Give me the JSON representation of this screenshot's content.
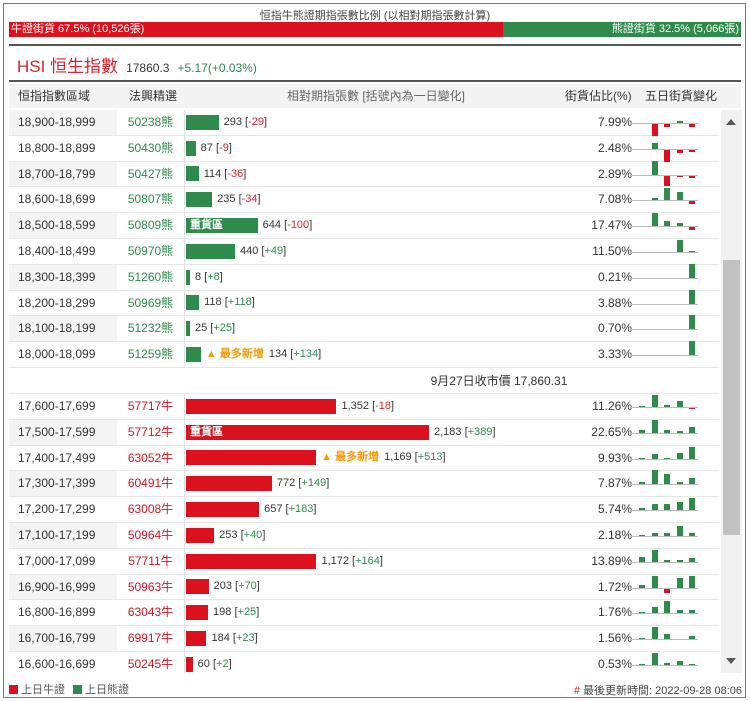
{
  "title": "恒指牛熊證期指張數比例 (以相對期指張數計算)",
  "ratio": {
    "bull_label": "牛證街貨 67.5% (10,526張)",
    "bull_pct": 67.5,
    "bear_label": "熊證街貨 32.5% (5,066張)",
    "bear_pct": 32.5
  },
  "index": {
    "name": "HSI 恒生指數",
    "price": "17860.3",
    "change": "+5.17(+0.03%)"
  },
  "headers": {
    "range": "恒指指數區域",
    "pick": "法興精選",
    "contracts": "相對期指張數 [括號內為一日變化]",
    "pct": "街貨佔比(%)",
    "five_day": "五日街貨變化"
  },
  "close_label": "9月27日收市價 17,860.31",
  "tags": {
    "heavy": "重貨區",
    "most_new": "▲ 最多新增"
  },
  "colors": {
    "bull": "#dc111e",
    "bear": "#2e8b4c",
    "hot": "#f39c12"
  },
  "bear_rows": [
    {
      "range": "18,900-18,999",
      "code": "50238熊",
      "count": 293,
      "count_label": "293",
      "change": "-29",
      "pct": "7.99%",
      "spark": [
        0,
        -12,
        -3,
        2,
        -3
      ]
    },
    {
      "range": "18,800-18,899",
      "code": "50430熊",
      "count": 87,
      "count_label": "87",
      "change": "-9",
      "pct": "2.48%",
      "spark": [
        0,
        6,
        -12,
        -3,
        -2
      ]
    },
    {
      "range": "18,700-18,799",
      "code": "50427熊",
      "count": 114,
      "count_label": "114",
      "change": "-36",
      "pct": "2.89%",
      "spark": [
        0,
        14,
        -10,
        -1,
        -2
      ]
    },
    {
      "range": "18,600-18,699",
      "code": "50807熊",
      "count": 235,
      "count_label": "235",
      "change": "-34",
      "pct": "7.08%",
      "spark": [
        0,
        2,
        12,
        8,
        -3
      ]
    },
    {
      "range": "18,500-18,599",
      "code": "50809熊",
      "count": 644,
      "count_label": "644",
      "change": "-100",
      "pct": "17.47%",
      "spark": [
        0,
        13,
        5,
        3,
        -3
      ],
      "heavy": true
    },
    {
      "range": "18,400-18,499",
      "code": "50970熊",
      "count": 440,
      "count_label": "440",
      "change": "+49",
      "pct": "11.50%",
      "spark": [
        0,
        0,
        0,
        12,
        1
      ]
    },
    {
      "range": "18,300-18,399",
      "code": "51260熊",
      "count": 8,
      "count_label": "8",
      "change": "+8",
      "pct": "0.21%",
      "spark": [
        0,
        0,
        0,
        0,
        14
      ]
    },
    {
      "range": "18,200-18,299",
      "code": "50969熊",
      "count": 118,
      "count_label": "118",
      "change": "+118",
      "pct": "3.88%",
      "spark": [
        0,
        0,
        0,
        0,
        14
      ]
    },
    {
      "range": "18,100-18,199",
      "code": "51232熊",
      "count": 25,
      "count_label": "25",
      "change": "+25",
      "pct": "0.70%",
      "spark": [
        0,
        0,
        0,
        0,
        14
      ]
    },
    {
      "range": "18,000-18,099",
      "code": "51259熊",
      "count": 134,
      "count_label": "134",
      "change": "+134",
      "pct": "3.33%",
      "spark": [
        0,
        0,
        0,
        0,
        14
      ],
      "most_new": true
    }
  ],
  "bull_rows": [
    {
      "range": "17,600-17,699",
      "code": "57717牛",
      "count": 1352,
      "count_label": "1,352",
      "change": "-18",
      "pct": "11.26%",
      "spark": [
        1,
        12,
        2,
        6,
        -1
      ]
    },
    {
      "range": "17,500-17,599",
      "code": "57712牛",
      "count": 2183,
      "count_label": "2,183",
      "change": "+389",
      "pct": "22.65%",
      "spark": [
        3,
        13,
        3,
        2,
        6
      ],
      "heavy": true
    },
    {
      "range": "17,400-17,499",
      "code": "63052牛",
      "count": 1169,
      "count_label": "1,169",
      "change": "+513",
      "pct": "9.93%",
      "spark": [
        1,
        5,
        1,
        6,
        12
      ],
      "most_new": true
    },
    {
      "range": "17,300-17,399",
      "code": "60491牛",
      "count": 772,
      "count_label": "772",
      "change": "+149",
      "pct": "7.87%",
      "spark": [
        2,
        14,
        10,
        2,
        6
      ]
    },
    {
      "range": "17,200-17,299",
      "code": "63008牛",
      "count": 657,
      "count_label": "657",
      "change": "+183",
      "pct": "5.74%",
      "spark": [
        2,
        6,
        6,
        8,
        12
      ]
    },
    {
      "range": "17,100-17,199",
      "code": "50964牛",
      "count": 253,
      "count_label": "253",
      "change": "+40",
      "pct": "2.18%",
      "spark": [
        1,
        3,
        3,
        10,
        3
      ]
    },
    {
      "range": "17,000-17,099",
      "code": "57711牛",
      "count": 1172,
      "count_label": "1,172",
      "change": "+164",
      "pct": "13.89%",
      "spark": [
        5,
        12,
        2,
        2,
        4
      ]
    },
    {
      "range": "16,900-16,999",
      "code": "50963牛",
      "count": 203,
      "count_label": "203",
      "change": "+70",
      "pct": "1.72%",
      "spark": [
        3,
        12,
        -4,
        10,
        12
      ]
    },
    {
      "range": "16,800-16,899",
      "code": "63043牛",
      "count": 198,
      "count_label": "198",
      "change": "+25",
      "pct": "1.76%",
      "spark": [
        1,
        6,
        12,
        3,
        3
      ]
    },
    {
      "range": "16,700-16,799",
      "code": "69917牛",
      "count": 184,
      "count_label": "184",
      "change": "+23",
      "pct": "1.56%",
      "spark": [
        1,
        12,
        5,
        0,
        3
      ]
    },
    {
      "range": "16,600-16,699",
      "code": "50245牛",
      "count": 60,
      "count_label": "60",
      "change": "+2",
      "pct": "0.53%",
      "spark": [
        1,
        12,
        2,
        4,
        1
      ]
    }
  ],
  "legend": {
    "bull": "上日牛證",
    "bear": "上日熊證"
  },
  "updated": {
    "marker": "#",
    "label": "最後更新時間: 2022-09-28 08:06"
  }
}
